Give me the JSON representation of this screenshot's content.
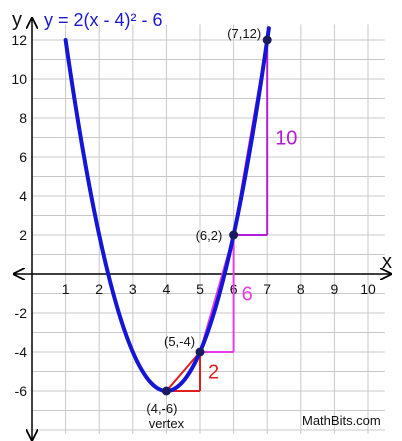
{
  "chart_data": {
    "type": "line",
    "title": "y = 2(x - 4)² - 6",
    "xlabel": "x",
    "ylabel": "y",
    "xlim": [
      0,
      10.5
    ],
    "ylim": [
      -8.2,
      12.8
    ],
    "x_ticks": [
      1,
      2,
      3,
      4,
      5,
      6,
      7,
      8,
      9,
      10
    ],
    "y_ticks": [
      12,
      10,
      8,
      6,
      4,
      2,
      -2,
      -4,
      -6
    ],
    "grid": true,
    "curve": {
      "a": 2,
      "h": 4,
      "k": -6,
      "x_from": 1,
      "x_to": 7.05
    },
    "points": [
      {
        "x": 7,
        "y": 12,
        "label": "(7,12)"
      },
      {
        "x": 6,
        "y": 2,
        "label": "(6,2)"
      },
      {
        "x": 5,
        "y": -4,
        "label": "(5,-4)"
      },
      {
        "x": 4,
        "y": -6,
        "label": "(4,-6)",
        "sublabel": "vertex"
      }
    ],
    "slope_steps": [
      {
        "from": [
          6,
          2
        ],
        "to": [
          7,
          12
        ],
        "rise_label": "10"
      },
      {
        "from": [
          5,
          -4
        ],
        "to": [
          6,
          2
        ],
        "rise_label": "6"
      },
      {
        "from": [
          4,
          -6
        ],
        "to": [
          5,
          -4
        ],
        "rise_label": "2"
      }
    ]
  },
  "colors": {
    "curve": "#1515d6",
    "title": "#1a1acc",
    "purple": "#b21ad6",
    "magenta": "#e63ce6",
    "red": "#e01e1e",
    "point": "#1a1a5e"
  },
  "credit": "MathBits.com"
}
